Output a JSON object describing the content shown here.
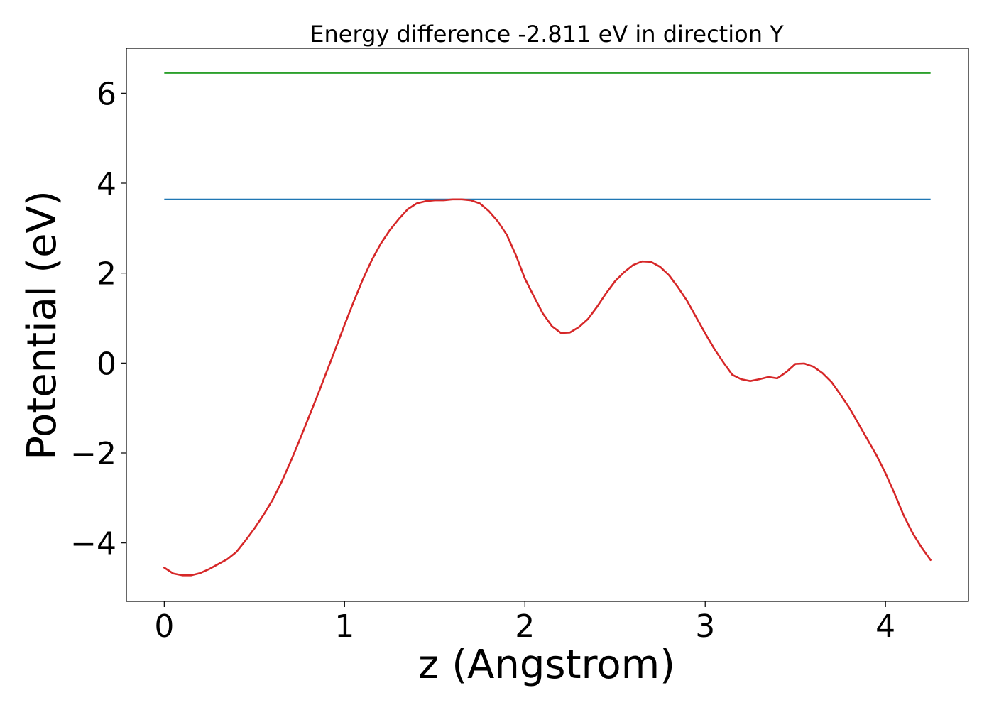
{
  "chart_data": {
    "type": "line",
    "title": "Energy difference -2.811 eV in direction Y",
    "xlabel": "z (Angstrom)",
    "ylabel": "Potential (eV)",
    "xlim": [
      -0.21,
      4.46
    ],
    "ylim": [
      -5.3,
      7.0
    ],
    "xticks": [
      0,
      1,
      2,
      3,
      4
    ],
    "yticks": [
      -4,
      -2,
      0,
      2,
      4,
      6
    ],
    "ytick_labels": [
      "−4",
      "−2",
      "0",
      "2",
      "4",
      "6"
    ],
    "grid": false,
    "colors": {
      "potential": "#d62728",
      "blue_level": "#1f77b4",
      "green_level": "#2ca02c"
    },
    "series": [
      {
        "type": "hline",
        "y": 6.45,
        "x_range": [
          0,
          4.25
        ],
        "color": "#2ca02c"
      },
      {
        "type": "hline",
        "y": 3.64,
        "x_range": [
          0,
          4.25
        ],
        "color": "#1f77b4"
      },
      {
        "type": "line",
        "color": "#d62728",
        "x": [
          0,
          0.05,
          0.1,
          0.15,
          0.2,
          0.25,
          0.3,
          0.35,
          0.4,
          0.45,
          0.5,
          0.55,
          0.6,
          0.65,
          0.7,
          0.75,
          0.8,
          0.85,
          0.9,
          0.95,
          1.0,
          1.05,
          1.1,
          1.15,
          1.2,
          1.25,
          1.3,
          1.35,
          1.4,
          1.45,
          1.5,
          1.55,
          1.6,
          1.65,
          1.7,
          1.75,
          1.8,
          1.85,
          1.9,
          1.95,
          2.0,
          2.05,
          2.1,
          2.15,
          2.2,
          2.25,
          2.3,
          2.35,
          2.4,
          2.45,
          2.5,
          2.55,
          2.6,
          2.65,
          2.7,
          2.75,
          2.8,
          2.85,
          2.9,
          2.95,
          3.0,
          3.05,
          3.1,
          3.15,
          3.2,
          3.25,
          3.3,
          3.35,
          3.4,
          3.45,
          3.5,
          3.55,
          3.6,
          3.65,
          3.7,
          3.75,
          3.8,
          3.85,
          3.9,
          3.95,
          4.0,
          4.05,
          4.1,
          4.15,
          4.2,
          4.25
        ],
        "y": [
          -4.55,
          -4.68,
          -4.72,
          -4.72,
          -4.67,
          -4.58,
          -4.47,
          -4.36,
          -4.2,
          -3.95,
          -3.68,
          -3.38,
          -3.05,
          -2.65,
          -2.2,
          -1.72,
          -1.22,
          -0.72,
          -0.2,
          0.32,
          0.85,
          1.36,
          1.85,
          2.28,
          2.65,
          2.95,
          3.2,
          3.42,
          3.55,
          3.6,
          3.62,
          3.62,
          3.64,
          3.64,
          3.62,
          3.55,
          3.38,
          3.15,
          2.85,
          2.4,
          1.88,
          1.48,
          1.1,
          0.82,
          0.67,
          0.68,
          0.8,
          0.98,
          1.25,
          1.55,
          1.82,
          2.02,
          2.18,
          2.26,
          2.25,
          2.14,
          1.95,
          1.68,
          1.38,
          1.02,
          0.66,
          0.32,
          0.02,
          -0.26,
          -0.36,
          -0.4,
          -0.36,
          -0.31,
          -0.34,
          -0.2,
          -0.02,
          -0.01,
          -0.08,
          -0.22,
          -0.42,
          -0.7,
          -1.0,
          -1.35,
          -1.7,
          -2.05,
          -2.45,
          -2.9,
          -3.38,
          -3.78,
          -4.1,
          -4.38
        ]
      }
    ]
  }
}
